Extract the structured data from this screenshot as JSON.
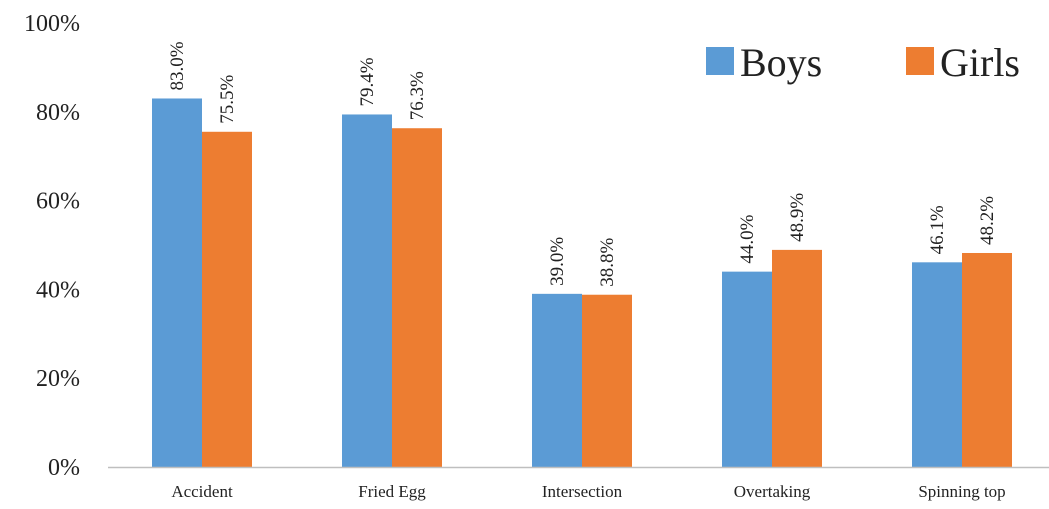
{
  "chart_data": {
    "type": "bar",
    "title": "",
    "xlabel": "",
    "ylabel": "",
    "categories": [
      "Accident",
      "Fried Egg",
      "Intersection",
      "Overtaking",
      "Spinning top"
    ],
    "series": [
      {
        "name": "Boys",
        "color": "#5b9bd5",
        "values": [
          83.0,
          79.4,
          39.0,
          44.0,
          46.1
        ],
        "labels": [
          "83.0%",
          "79.4%",
          "39.0%",
          "44.0%",
          "46.1%"
        ]
      },
      {
        "name": "Girls",
        "color": "#ed7d31",
        "values": [
          75.5,
          76.3,
          38.8,
          48.9,
          48.2
        ],
        "labels": [
          "75.5%",
          "76.3%",
          "38.8%",
          "48.9%",
          "48.2%"
        ]
      }
    ],
    "ylim": [
      0,
      100
    ],
    "y_ticks": [
      0,
      20,
      40,
      60,
      80,
      100
    ],
    "y_tick_labels": [
      "0%",
      "20%",
      "40%",
      "60%",
      "80%",
      "100%"
    ],
    "grid": false,
    "legend_position": "top-right"
  }
}
